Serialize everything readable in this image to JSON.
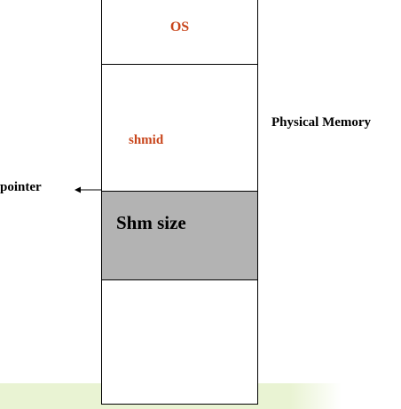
{
  "diagram": {
    "os_label": "OS",
    "shmid_label": "shmid",
    "shm_size_label": "Shm size",
    "physical_memory_label": "Physical Memory",
    "pointer_label": "pointer"
  },
  "colors": {
    "accent_text": "#c8451b",
    "shared_segment_fill": "#b3b3b3",
    "footer_band": "#e9f3d3"
  }
}
